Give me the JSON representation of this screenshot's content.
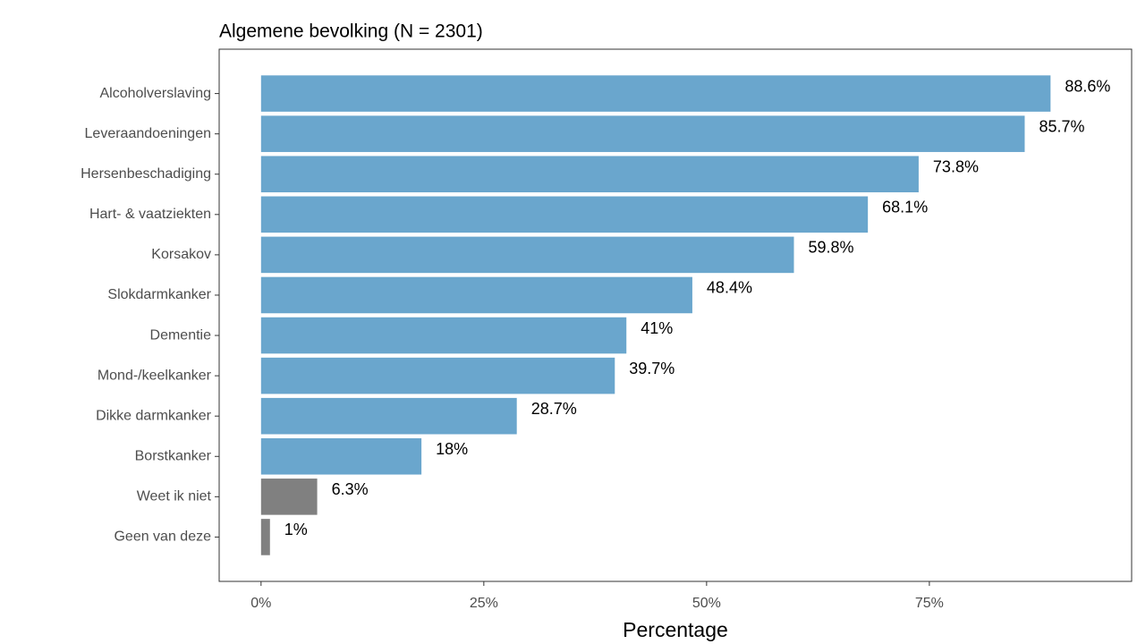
{
  "chart_data": {
    "type": "bar",
    "orientation": "horizontal",
    "title": "Algemene bevolking (N = 2301)",
    "x_label": "Percentage",
    "categories": [
      "Alcoholverslaving",
      "Leveraandoeningen",
      "Hersenbeschadiging",
      "Hart- & vaatziekten",
      "Korsakov",
      "Slokdarmkanker",
      "Dementie",
      "Mond-/keelkanker",
      "Dikke darmkanker",
      "Borstkanker",
      "Weet ik niet",
      "Geen van deze"
    ],
    "values": [
      88.6,
      85.7,
      73.8,
      68.1,
      59.8,
      48.4,
      41,
      39.7,
      28.7,
      18,
      6.3,
      1
    ],
    "value_labels": [
      "88.6%",
      "85.7%",
      "73.8%",
      "68.1%",
      "59.8%",
      "48.4%",
      "41%",
      "39.7%",
      "28.7%",
      "18%",
      "6.3%",
      "1%"
    ],
    "colors": [
      "#6aa6cd",
      "#6aa6cd",
      "#6aa6cd",
      "#6aa6cd",
      "#6aa6cd",
      "#6aa6cd",
      "#6aa6cd",
      "#6aa6cd",
      "#6aa6cd",
      "#6aa6cd",
      "#808080",
      "#808080"
    ],
    "xlim": [
      -4.7,
      97.7
    ],
    "xticks": [
      {
        "value": 0,
        "label": "0%"
      },
      {
        "value": 25,
        "label": "25%"
      },
      {
        "value": 50,
        "label": "50%"
      },
      {
        "value": 75,
        "label": "75%"
      }
    ],
    "grid": false
  }
}
